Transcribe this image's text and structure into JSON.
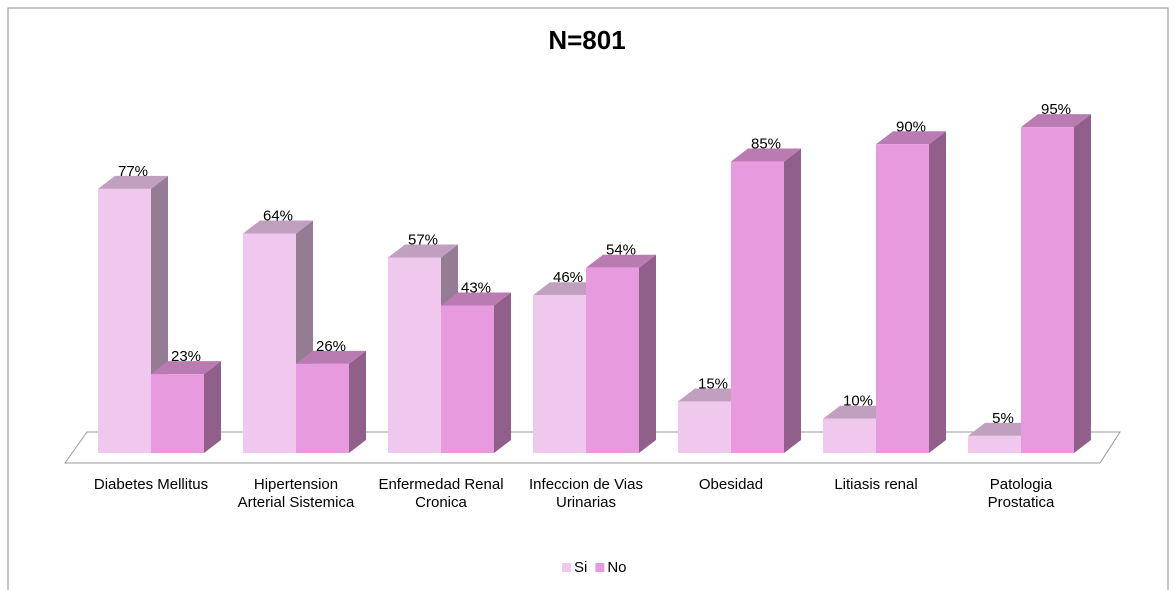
{
  "chart_data": {
    "type": "bar3d",
    "title": "N=801",
    "categories": [
      "Diabetes Mellitus",
      "Hipertension Arterial Sistemica",
      "Enfermedad Renal Cronica",
      "Infeccion de Vias Urinarias",
      "Obesidad",
      "Litiasis renal",
      "Patologia Prostatica"
    ],
    "series": [
      {
        "name": "Si",
        "color": "#f0c8ee",
        "values": [
          77,
          64,
          57,
          46,
          15,
          10,
          5
        ],
        "value_labels": [
          "77%",
          "64%",
          "57%",
          "46%",
          "15%",
          "10%",
          "5%"
        ]
      },
      {
        "name": "No",
        "color": "#e89ade",
        "values": [
          23,
          26,
          43,
          54,
          85,
          90,
          95
        ],
        "value_labels": [
          "23%",
          "26%",
          "43%",
          "54%",
          "85%",
          "90%",
          "95%"
        ]
      }
    ],
    "legend": "bottom"
  }
}
